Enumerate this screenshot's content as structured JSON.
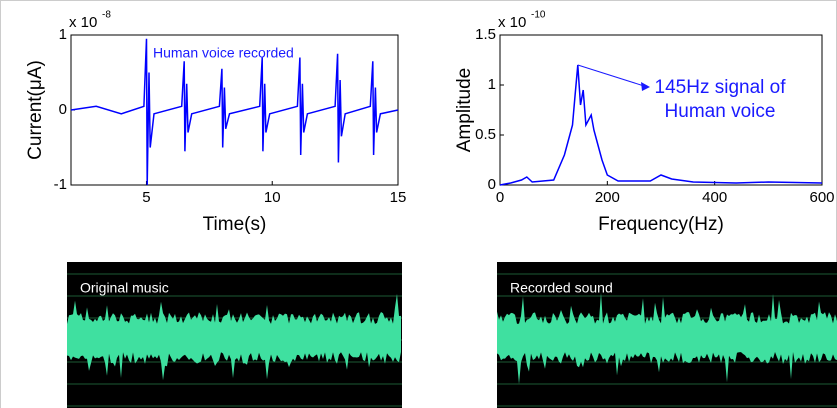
{
  "chart_data": [
    {
      "type": "line",
      "scale_label": "x 10",
      "scale_exponent": "-8",
      "annotation": "Human voice recorded",
      "xlabel": "Time(s)",
      "ylabel": "Current(μA)",
      "xlim": [
        2,
        15
      ],
      "xticks": [
        5,
        10,
        15
      ],
      "ylim": [
        -1,
        1
      ],
      "yticks": [
        -1,
        0,
        1
      ],
      "x": [
        2,
        3,
        4,
        4.9,
        5,
        5.03,
        5.1,
        5.15,
        5.3,
        6.4,
        6.5,
        6.53,
        6.6,
        6.65,
        6.8,
        7.9,
        8,
        8.03,
        8.1,
        8.15,
        8.3,
        9.5,
        9.6,
        9.63,
        9.7,
        9.75,
        9.9,
        11,
        11.1,
        11.13,
        11.2,
        11.25,
        11.4,
        12.5,
        12.6,
        12.63,
        12.7,
        12.75,
        12.9,
        13.9,
        14,
        14.03,
        14.1,
        14.15,
        14.3,
        15
      ],
      "series": [
        {
          "color": "#0000ff",
          "values": [
            0,
            0.05,
            -0.05,
            0.05,
            0.95,
            -1.0,
            0.5,
            -0.5,
            -0.05,
            0.05,
            0.65,
            -0.55,
            0.35,
            -0.3,
            -0.05,
            0.05,
            0.55,
            -0.5,
            0.3,
            -0.25,
            -0.05,
            0.05,
            0.7,
            -0.55,
            0.35,
            -0.3,
            -0.05,
            0.05,
            0.7,
            -0.6,
            0.35,
            -0.3,
            -0.05,
            0.05,
            0.75,
            -0.7,
            0.4,
            -0.35,
            -0.05,
            0.05,
            0.65,
            -0.6,
            0.3,
            -0.3,
            -0.05,
            0
          ]
        }
      ]
    },
    {
      "type": "line",
      "scale_label": "x 10",
      "scale_exponent": "-10",
      "annotation": [
        "145Hz signal of",
        "Human voice"
      ],
      "xlabel": "Frequency(Hz)",
      "ylabel": "Amplitude",
      "xlim": [
        0,
        600
      ],
      "xticks": [
        0,
        200,
        400,
        600
      ],
      "ylim": [
        0,
        1.5
      ],
      "yticks": [
        0,
        0.5,
        1,
        1.5
      ],
      "x": [
        0,
        20,
        40,
        50,
        60,
        100,
        120,
        130,
        135,
        140,
        145,
        150,
        155,
        160,
        170,
        175,
        180,
        190,
        200,
        220,
        280,
        300,
        320,
        360,
        440,
        500,
        600
      ],
      "series": [
        {
          "color": "#0000ff",
          "values": [
            0,
            0.02,
            0.05,
            0.08,
            0.03,
            0.05,
            0.3,
            0.5,
            0.6,
            0.9,
            1.2,
            0.8,
            0.95,
            0.6,
            0.7,
            0.55,
            0.45,
            0.25,
            0.1,
            0.04,
            0.04,
            0.1,
            0.06,
            0.03,
            0.02,
            0.03,
            0.02
          ]
        }
      ]
    }
  ],
  "waveforms": [
    {
      "label": "Original music"
    },
    {
      "label": "Recorded sound"
    }
  ]
}
